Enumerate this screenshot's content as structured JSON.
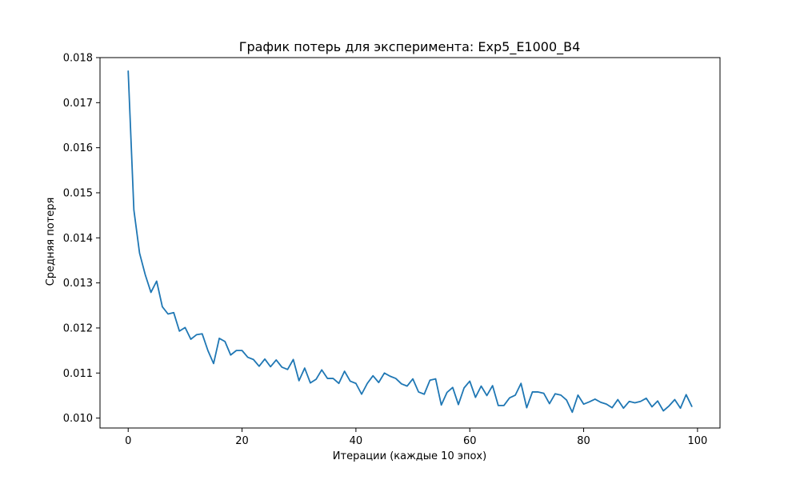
{
  "chart_data": {
    "type": "line",
    "title": "График потерь для эксперимента: Exp5_E1000_B4",
    "xlabel": "Итерации (каждые 10 эпох)",
    "ylabel": "Средняя потеря",
    "xlim": [
      -4.95,
      103.95
    ],
    "ylim": [
      0.00978,
      0.018
    ],
    "xticks": [
      0,
      20,
      40,
      60,
      80,
      100
    ],
    "yticks": [
      0.01,
      0.011,
      0.012,
      0.013,
      0.014,
      0.015,
      0.016,
      0.017,
      0.018
    ],
    "xtick_labels": [
      "0",
      "20",
      "40",
      "60",
      "80",
      "100"
    ],
    "ytick_labels": [
      "0.010",
      "0.011",
      "0.012",
      "0.013",
      "0.014",
      "0.015",
      "0.016",
      "0.017",
      "0.018"
    ],
    "grid": false,
    "colors": {
      "line": "#1f77b4"
    },
    "series": [
      {
        "x": [
          0,
          1,
          2,
          3,
          4,
          5,
          6,
          7,
          8,
          9,
          10,
          11,
          12,
          13,
          14,
          15,
          16,
          17,
          18,
          19,
          20,
          21,
          22,
          23,
          24,
          25,
          26,
          27,
          28,
          29,
          30,
          31,
          32,
          33,
          34,
          35,
          36,
          37,
          38,
          39,
          40,
          41,
          42,
          43,
          44,
          45,
          46,
          47,
          48,
          49,
          50,
          51,
          52,
          53,
          54,
          55,
          56,
          57,
          58,
          59,
          60,
          61,
          62,
          63,
          64,
          65,
          66,
          67,
          68,
          69,
          70,
          71,
          72,
          73,
          74,
          75,
          76,
          77,
          78,
          79,
          80,
          81,
          82,
          83,
          84,
          85,
          86,
          87,
          88,
          89,
          90,
          91,
          92,
          93,
          94,
          95,
          96,
          97,
          98,
          99
        ],
        "values": [
          0.0177,
          0.01462,
          0.01366,
          0.01318,
          0.01279,
          0.01304,
          0.01247,
          0.01231,
          0.01234,
          0.01193,
          0.01201,
          0.01175,
          0.01185,
          0.01187,
          0.0115,
          0.01121,
          0.01177,
          0.0117,
          0.0114,
          0.0115,
          0.0115,
          0.01135,
          0.0113,
          0.01115,
          0.01131,
          0.01114,
          0.01129,
          0.01113,
          0.01108,
          0.0113,
          0.01083,
          0.01111,
          0.01078,
          0.01086,
          0.01107,
          0.01088,
          0.01088,
          0.01077,
          0.01104,
          0.01082,
          0.01077,
          0.01053,
          0.01077,
          0.01094,
          0.01079,
          0.011,
          0.01093,
          0.01088,
          0.01076,
          0.01071,
          0.01087,
          0.01058,
          0.01053,
          0.01084,
          0.01087,
          0.01029,
          0.01057,
          0.01068,
          0.0103,
          0.01067,
          0.01082,
          0.01046,
          0.01071,
          0.0105,
          0.01072,
          0.01028,
          0.01028,
          0.01045,
          0.01051,
          0.01077,
          0.01023,
          0.01058,
          0.01058,
          0.01055,
          0.01032,
          0.01054,
          0.01051,
          0.0104,
          0.01013,
          0.01051,
          0.01031,
          0.01036,
          0.01042,
          0.01035,
          0.01031,
          0.01023,
          0.01041,
          0.01022,
          0.01037,
          0.01034,
          0.01037,
          0.01044,
          0.01025,
          0.01038,
          0.01016,
          0.01027,
          0.01041,
          0.01022,
          0.01052,
          0.01026
        ]
      }
    ]
  }
}
